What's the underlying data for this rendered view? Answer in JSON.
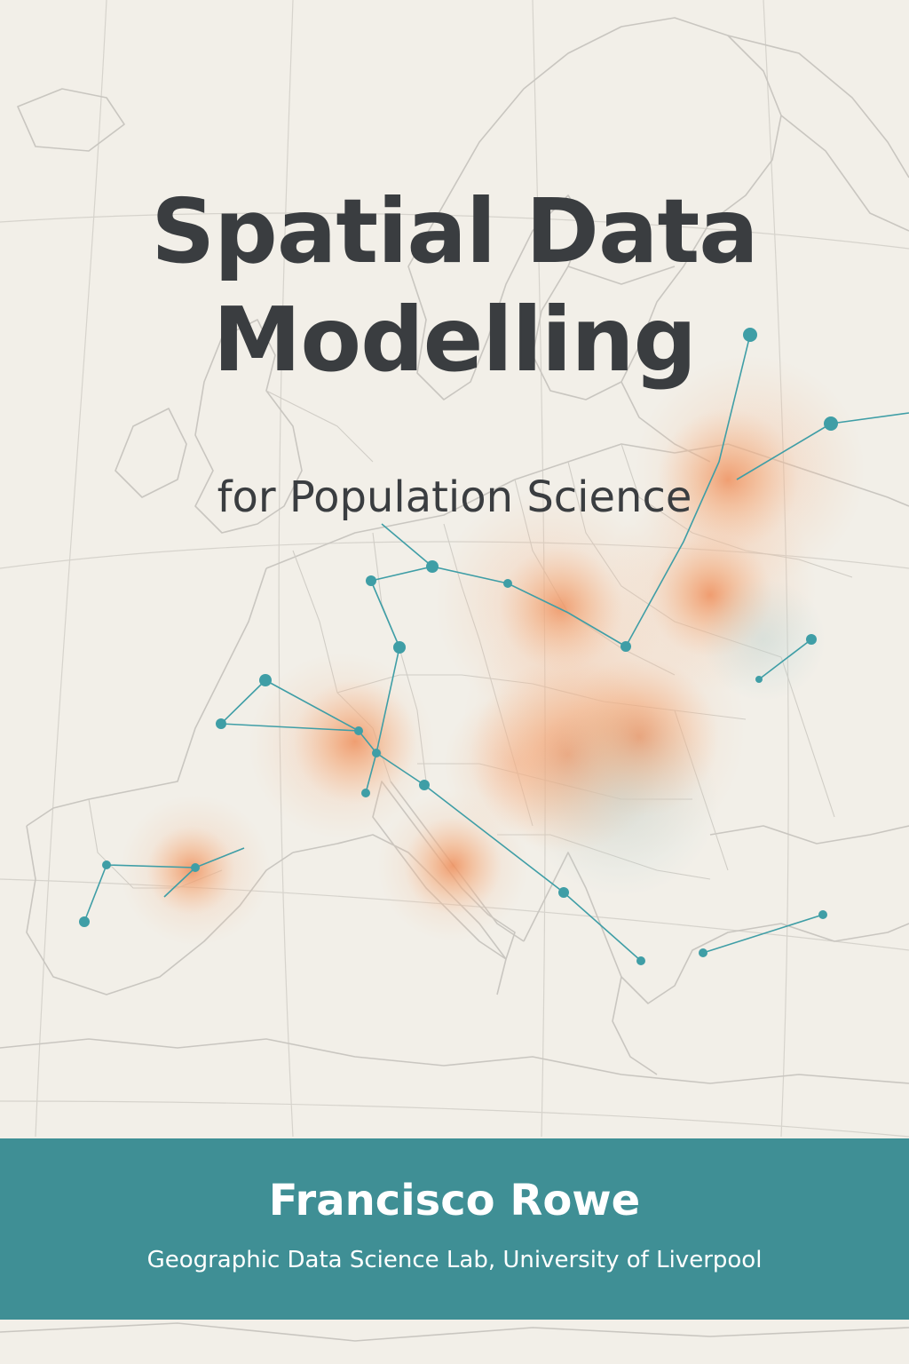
{
  "cover": {
    "title_line_1": "Spatial Data",
    "title_line_2": "Modelling",
    "subtitle": "for Population Science",
    "author": "Francisco Rowe",
    "affiliation": "Geographic Data Science Lab, University of Liverpool"
  },
  "colors": {
    "background": "#f2efe8",
    "title_text": "#3a3d40",
    "band": "#3f8f95",
    "band_text": "#ffffff",
    "network": "#3f9ea6",
    "hotspot": "#f2a070",
    "map_lines": "#c9c6c0"
  },
  "illustration": {
    "subject": "map of Europe with population hotspots and connection network",
    "icon": "europe-map-icon"
  }
}
